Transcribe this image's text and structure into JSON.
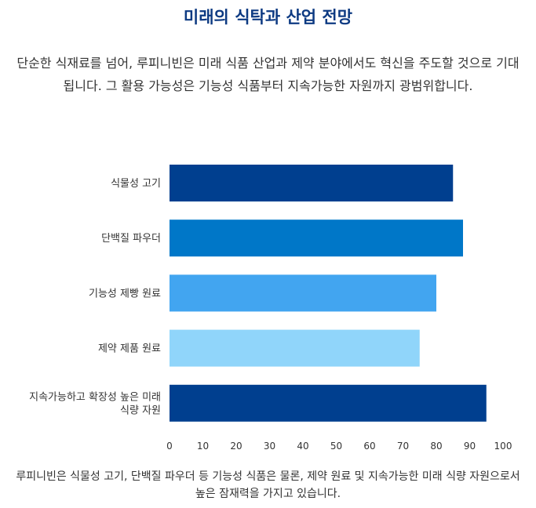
{
  "header": {
    "title": "미래의 식탁과 산업 전망",
    "intro": "단순한 식재료를 넘어, 루피니빈은 미래 식품 산업과 제약 분야에서도 혁신을 주도할 것으로 기대됩니다. 그 활용 가능성은 기능성 식품부터 지속가능한 자원까지 광범위합니다."
  },
  "chart_data": {
    "type": "bar",
    "orientation": "horizontal",
    "categories": [
      [
        "식물성 고기"
      ],
      [
        "단백질 파우더"
      ],
      [
        "기능성 제빵 원료"
      ],
      [
        "제약 제품 원료"
      ],
      [
        "지속가능하고 확장성 높은 미래",
        "식량 자원"
      ]
    ],
    "values": [
      85,
      88,
      80,
      75,
      95
    ],
    "colors": [
      "#003f8f",
      "#0077c8",
      "#42a5f0",
      "#90d5fa",
      "#003f8f"
    ],
    "xlim": [
      0,
      100
    ],
    "xticks": [
      "0",
      "10",
      "20",
      "30",
      "40",
      "50",
      "60",
      "70",
      "80",
      "90",
      "100"
    ],
    "grid": false,
    "legend": "none"
  },
  "footer": {
    "caption": "루피니빈은 식물성 고기, 단백질 파우더 등 기능성 식품은 물론, 제약 원료 및 지속가능한 미래 식량 자원으로서 높은 잠재력을 가지고 있습니다."
  }
}
